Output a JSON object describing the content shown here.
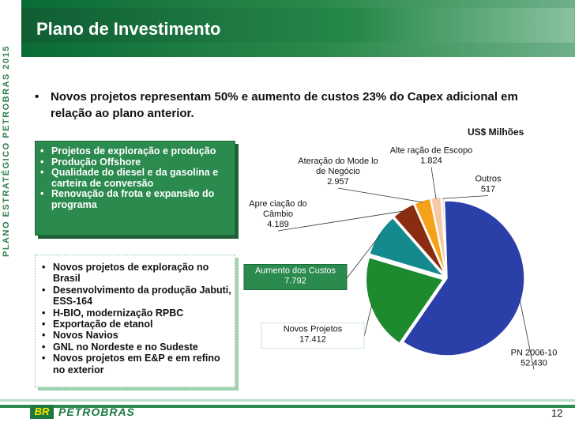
{
  "header": {
    "title": "Plano de Investimento",
    "side_label": "PLANO ESTRATÉGICO PETROBRAS 2015"
  },
  "main_bullet": "Novos projetos representam 50% e aumento de custos 23% do Capex adicional em relação ao plano anterior.",
  "box_green": {
    "items": [
      "Projetos de exploração e produção",
      "Produção Offshore",
      "Qualidade do diesel e da gasolina e carteira de conversão",
      "Renovação da frota e expansão do programa"
    ]
  },
  "box_light": {
    "items": [
      "Novos projetos de exploração no Brasil",
      "Desenvolvimento da produção Jabuti, ESS-164",
      "H-BIO, modernização RPBC",
      "Exportação de etanol",
      "Novos Navios",
      "GNL no Nordeste e no Sudeste",
      "Novos projetos em E&P e em refino no exterior"
    ]
  },
  "chart_data": {
    "type": "pie",
    "unit_label": "US$ Milhões",
    "slices": [
      {
        "label": "PN 2006-10",
        "value_text": "52.430",
        "value": 52430,
        "color": "#2a3fa8",
        "label_lines": [
          "PN 2006-10",
          "52.430"
        ]
      },
      {
        "label": "Novos Projetos",
        "value_text": "17.412",
        "value": 17412,
        "color": "#1e8a2e",
        "label_lines": [
          "Novos Projetos",
          "17.412"
        ]
      },
      {
        "label": "Aumento dos Custos",
        "value_text": "7.792",
        "value": 7792,
        "color": "#158a8e",
        "label_lines": [
          "Aumento dos Custos",
          "7.792"
        ]
      },
      {
        "label": "Apreciação do Câmbio",
        "value_text": "4.189",
        "value": 4189,
        "color": "#8a2c12",
        "label_lines": [
          "Apre ciação do",
          "Câmbio",
          "4.189"
        ]
      },
      {
        "label": "Ateração do Modelo de Negócio",
        "value_text": "2.957",
        "value": 2957,
        "color": "#f5a21a",
        "label_lines": [
          "Ateração do Mode lo",
          "de Negócio",
          "2.957"
        ]
      },
      {
        "label": "Alteração de Escopo",
        "value_text": "1.824",
        "value": 1824,
        "color": "#f6c9a4",
        "label_lines": [
          "Alte ração de Escopo",
          "1.824"
        ]
      },
      {
        "label": "Outros",
        "value_text": "517",
        "value": 517,
        "color": "#e6e6e6",
        "label_lines": [
          "Outros",
          "517"
        ]
      }
    ]
  },
  "footer": {
    "logo_mark": "BR",
    "logo_text": "PETROBRAS",
    "page_number": "12"
  }
}
